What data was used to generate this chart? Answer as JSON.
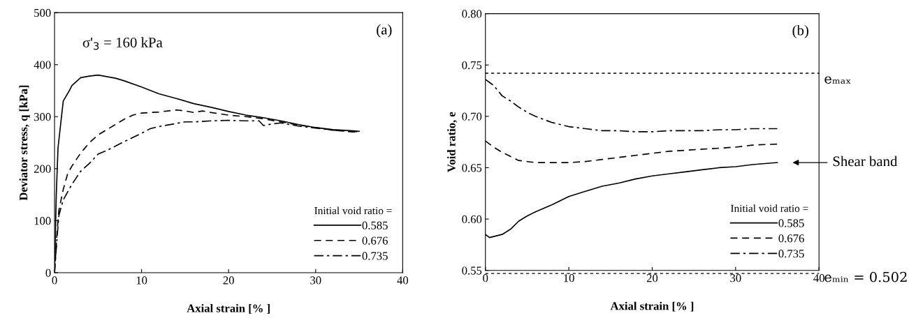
{
  "chart_data": [
    {
      "type": "line",
      "xlabel": "Axial strain [% ]",
      "ylabel": "Deviator stress, q [kPa]",
      "legend_title": "Initial void ratio =",
      "legend": "bottom right",
      "grid": false,
      "xlim": [
        0,
        40
      ],
      "xticks": [
        0,
        10,
        20,
        30,
        40
      ],
      "ylim": [
        0,
        500
      ],
      "yticks": [
        0,
        100,
        200,
        300,
        400,
        500
      ],
      "annotations": [
        "σ'$_{3}$ = 160 kPa",
        "(a)"
      ],
      "series": [
        {
          "name": "0.585",
          "color": "#000000",
          "line_style": "solid",
          "x": [
            0,
            0.2,
            0.4,
            1,
            1.7,
            2,
            3,
            4,
            5,
            6,
            7,
            8,
            10,
            12,
            14,
            16,
            18,
            20,
            22,
            24,
            26,
            28,
            30,
            32,
            34,
            35
          ],
          "values": [
            0,
            150,
            240,
            330,
            350,
            360,
            375,
            378,
            380,
            377,
            374,
            369,
            357,
            344,
            335,
            325,
            318,
            310,
            303,
            298,
            292,
            285,
            279,
            275,
            273,
            272
          ]
        },
        {
          "name": "0.676",
          "color": "#000000",
          "line_style": "dashed",
          "x": [
            0,
            0.3,
            0.5,
            1,
            1.5,
            2,
            3,
            4,
            5,
            6,
            7,
            8,
            9,
            10,
            12,
            14,
            15,
            16,
            17,
            18,
            20,
            22,
            24,
            26,
            28,
            30,
            32,
            34,
            35
          ],
          "values": [
            0,
            80,
            120,
            160,
            190,
            205,
            230,
            250,
            265,
            275,
            285,
            295,
            303,
            307,
            309,
            313,
            311,
            308,
            311,
            308,
            303,
            300,
            296,
            290,
            284,
            279,
            274,
            271,
            270
          ]
        },
        {
          "name": "0.735",
          "color": "#000000",
          "line_style": "dashdot",
          "x": [
            0,
            0.3,
            0.5,
            1,
            2,
            3,
            4,
            5,
            6,
            8,
            10,
            11,
            12,
            14,
            15,
            16,
            18,
            20,
            22,
            23.5,
            24,
            25,
            26,
            28,
            30,
            32,
            34,
            35
          ],
          "values": [
            0,
            70,
            110,
            140,
            170,
            195,
            210,
            228,
            235,
            252,
            268,
            277,
            281,
            287,
            290,
            290,
            292,
            293,
            292,
            292,
            283,
            286,
            288,
            282,
            278,
            274,
            272,
            271
          ]
        }
      ]
    },
    {
      "type": "line",
      "xlabel": "Axial strain [% ]",
      "ylabel": "Void ratio, e",
      "legend_title": "Initial void ratio =",
      "legend": "bottom right",
      "grid": false,
      "xlim": [
        0,
        40
      ],
      "xticks": [
        0,
        10,
        20,
        30,
        40
      ],
      "ylim": [
        0.55,
        0.8
      ],
      "yticks": [
        {
          "value": 0.55,
          "label": "0.55"
        },
        {
          "value": 0.6,
          "label": "0.60"
        },
        {
          "value": 0.65,
          "label": "0.65"
        },
        {
          "value": 0.7,
          "label": "0.70"
        },
        {
          "value": 0.75,
          "label": "0.75"
        },
        {
          "value": 0.8,
          "label": "0.80"
        }
      ],
      "annotations": [
        "(b)",
        "Shear band",
        "eₘᵢₙ = 0.502"
      ],
      "ref_lines": [
        {
          "axis": "y",
          "value": 0.742,
          "label": "eₘₐₓ",
          "line_style": "dashed",
          "color": "#000000"
        },
        {
          "axis": "y",
          "value": 0.547,
          "line_style": "dashed",
          "color": "#000000"
        }
      ],
      "series": [
        {
          "name": "0.585",
          "color": "#000000",
          "line_style": "solid",
          "x": [
            0,
            0.5,
            1,
            2,
            3,
            4,
            5,
            6,
            8,
            10,
            12,
            14,
            16,
            18,
            20,
            22,
            24,
            26,
            28,
            30,
            32,
            35
          ],
          "values": [
            0.585,
            0.582,
            0.583,
            0.585,
            0.59,
            0.598,
            0.603,
            0.607,
            0.614,
            0.622,
            0.627,
            0.632,
            0.635,
            0.639,
            0.642,
            0.644,
            0.646,
            0.648,
            0.65,
            0.651,
            0.653,
            0.655
          ]
        },
        {
          "name": "0.676",
          "color": "#000000",
          "line_style": "dashed",
          "x": [
            0,
            1,
            2,
            3,
            4,
            6,
            8,
            10,
            12,
            14,
            16,
            18,
            20,
            22,
            24,
            26,
            28,
            30,
            32,
            35
          ],
          "values": [
            0.676,
            0.67,
            0.665,
            0.661,
            0.657,
            0.655,
            0.655,
            0.655,
            0.656,
            0.658,
            0.66,
            0.662,
            0.664,
            0.666,
            0.667,
            0.668,
            0.669,
            0.67,
            0.672,
            0.673
          ]
        },
        {
          "name": "0.735",
          "color": "#000000",
          "line_style": "dashdot",
          "x": [
            0,
            1,
            2,
            3,
            4,
            5,
            6,
            8,
            10,
            12,
            14,
            16,
            18,
            20,
            22,
            24,
            26,
            28,
            30,
            32,
            35
          ],
          "values": [
            0.736,
            0.73,
            0.72,
            0.715,
            0.709,
            0.704,
            0.7,
            0.694,
            0.69,
            0.688,
            0.686,
            0.686,
            0.685,
            0.685,
            0.686,
            0.686,
            0.686,
            0.687,
            0.687,
            0.688,
            0.688
          ]
        }
      ]
    }
  ]
}
